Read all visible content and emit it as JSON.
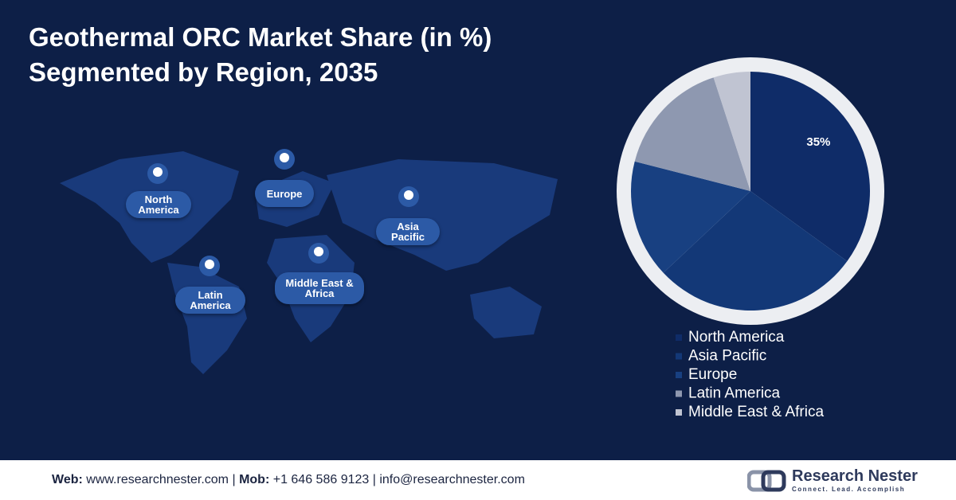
{
  "header": {
    "title": "Geothermal ORC Market Share (in %)",
    "subtitle": "Segmented by Region, 2035"
  },
  "map": {
    "labels": [
      "North America",
      "Europe",
      "Asia Pacific",
      "Latin America",
      "Middle East & Africa"
    ]
  },
  "chart_data": {
    "type": "pie",
    "categories": [
      "North America",
      "Asia Pacific",
      "Europe",
      "Latin America",
      "Middle East & Africa"
    ],
    "values": [
      35,
      28,
      16,
      16,
      5
    ],
    "value_labels": [
      "35%",
      null,
      null,
      null,
      null
    ],
    "colors": [
      "#0f2c68",
      "#133877",
      "#184081",
      "#8e98b0",
      "#c0c4d2"
    ],
    "legend": "bottom"
  },
  "footer": {
    "items": [
      {
        "label": "Web:",
        "value": "www.researchnester.com"
      },
      {
        "label": "Mob:",
        "value": "+1 646 586 9123"
      },
      {
        "value": "info@researchnester.com"
      }
    ],
    "separator": "|",
    "brand": "Research Nester",
    "tagline": "Connect. Lead. Accomplish"
  }
}
